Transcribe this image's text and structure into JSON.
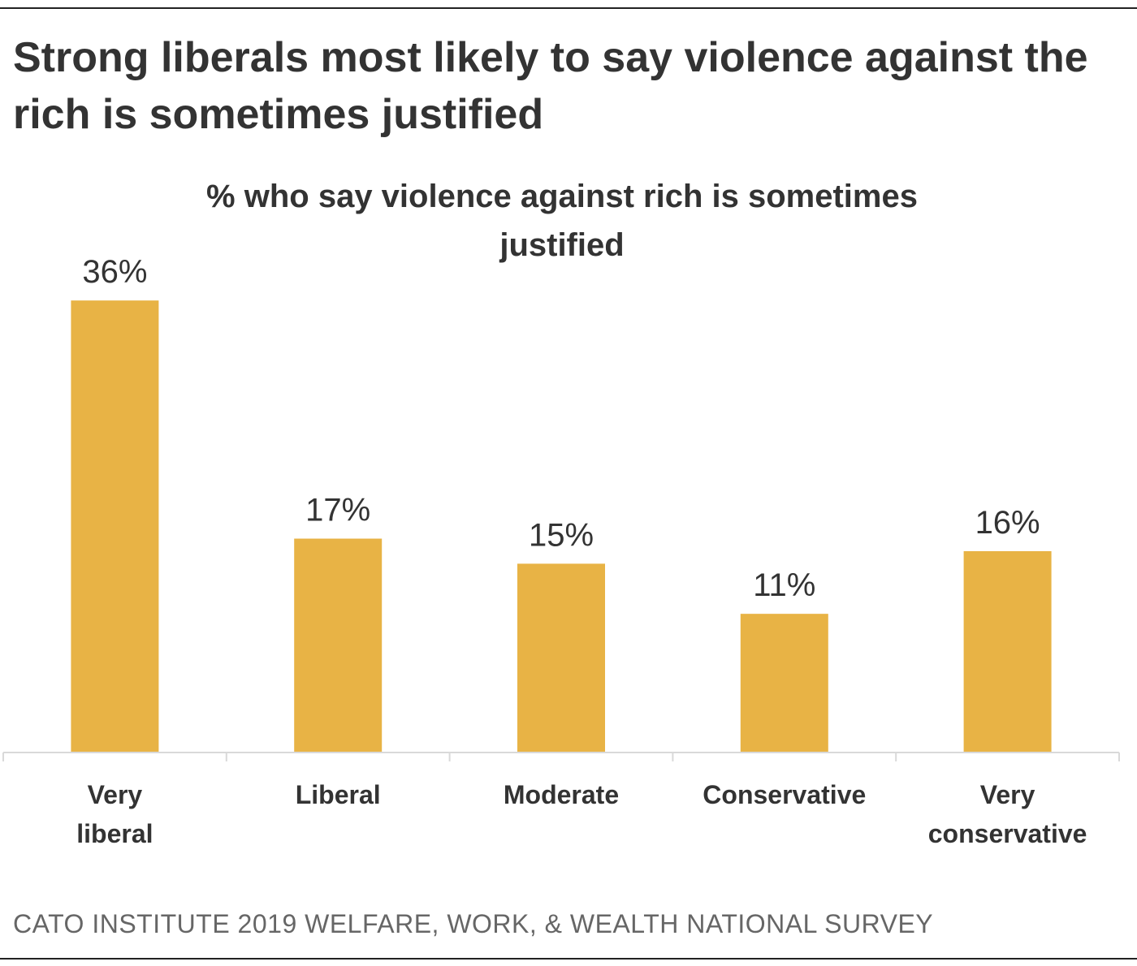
{
  "chart_data": {
    "type": "bar",
    "title": "Strong liberals most likely to say violence against the rich is sometimes justified",
    "subtitle": "% who say violence against rich is sometimes justified",
    "source": "CATO INSTITUTE 2019 WELFARE, WORK, & WEALTH NATIONAL SURVEY",
    "categories": [
      "Very liberal",
      "Liberal",
      "Moderate",
      "Conservative",
      "Very conservative"
    ],
    "values": [
      36,
      17,
      15,
      11,
      16
    ],
    "value_labels": [
      "36%",
      "17%",
      "15%",
      "11%",
      "16%"
    ],
    "color": "#e8b345"
  }
}
